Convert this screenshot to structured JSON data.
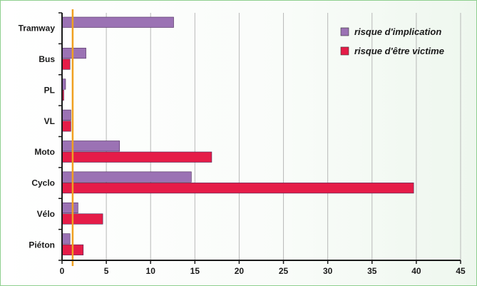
{
  "chart_data": {
    "type": "bar",
    "orientation": "horizontal",
    "categories": [
      "Tramway",
      "Bus",
      "PL",
      "VL",
      "Moto",
      "Cyclo",
      "Vélo",
      "Piéton"
    ],
    "series": [
      {
        "name": "risque d'implication",
        "color": "#9b72b4",
        "values": [
          12.6,
          2.7,
          0.4,
          1.0,
          6.5,
          14.6,
          1.8,
          0.9
        ]
      },
      {
        "name": "risque d'être victime",
        "color": "#e51c48",
        "values": [
          null,
          0.9,
          0.2,
          1.0,
          16.9,
          39.7,
          4.6,
          2.4
        ]
      }
    ],
    "xlim": [
      0,
      45
    ],
    "xticks": [
      "0",
      "5",
      "10",
      "15",
      "20",
      "25",
      "30",
      "35",
      "40",
      "45"
    ],
    "reference_line": {
      "value": 1.2,
      "color": "#f0a020"
    },
    "grid": true,
    "legend_position": "top-right",
    "title": "",
    "xlabel": "",
    "ylabel": ""
  }
}
